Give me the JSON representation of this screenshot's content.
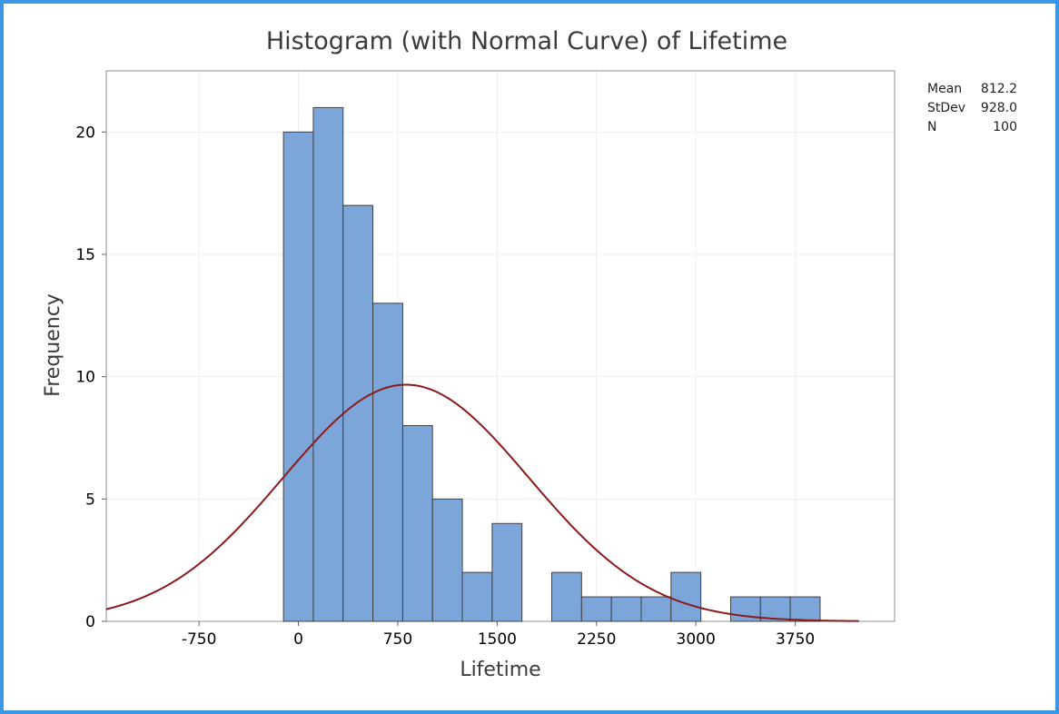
{
  "chart_data": {
    "type": "bar",
    "title": "Histogram (with Normal Curve) of Lifetime",
    "xlabel": "Lifetime",
    "ylabel": "Frequency",
    "xlim": [
      -1450,
      4500
    ],
    "ylim": [
      0,
      22.5
    ],
    "bin_width": 225,
    "bins": [
      {
        "center": 0,
        "count": 20
      },
      {
        "center": 225,
        "count": 21
      },
      {
        "center": 450,
        "count": 17
      },
      {
        "center": 675,
        "count": 13
      },
      {
        "center": 900,
        "count": 8
      },
      {
        "center": 1125,
        "count": 5
      },
      {
        "center": 1350,
        "count": 2
      },
      {
        "center": 1575,
        "count": 4
      },
      {
        "center": 1800,
        "count": 0
      },
      {
        "center": 2025,
        "count": 2
      },
      {
        "center": 2250,
        "count": 1
      },
      {
        "center": 2475,
        "count": 1
      },
      {
        "center": 2700,
        "count": 1
      },
      {
        "center": 2925,
        "count": 2
      },
      {
        "center": 3150,
        "count": 0
      },
      {
        "center": 3375,
        "count": 1
      },
      {
        "center": 3600,
        "count": 1
      },
      {
        "center": 3825,
        "count": 1
      }
    ],
    "x_ticks": [
      "-750",
      "0",
      "750",
      "1500",
      "2250",
      "3000",
      "3750"
    ],
    "x_tick_values": [
      -750,
      0,
      750,
      1500,
      2250,
      3000,
      3750
    ],
    "y_ticks": [
      "0",
      "5",
      "10",
      "15",
      "20"
    ],
    "y_tick_values": [
      0,
      5,
      10,
      15,
      20
    ],
    "normal_curve": {
      "mean": 812.2,
      "stdev": 928.0,
      "n": 100,
      "range": [
        -1450,
        4230
      ]
    },
    "stats": [
      {
        "label": "Mean",
        "value": "812.2"
      },
      {
        "label": "StDev",
        "value": "928.0"
      },
      {
        "label": "N",
        "value": "100"
      }
    ],
    "grid": true,
    "colors": {
      "bar_fill": "#7ca6da",
      "bar_stroke": "#404040",
      "curve": "#8b1a1a",
      "frame": "#3a97e6",
      "grid": "#eeeeee"
    }
  }
}
